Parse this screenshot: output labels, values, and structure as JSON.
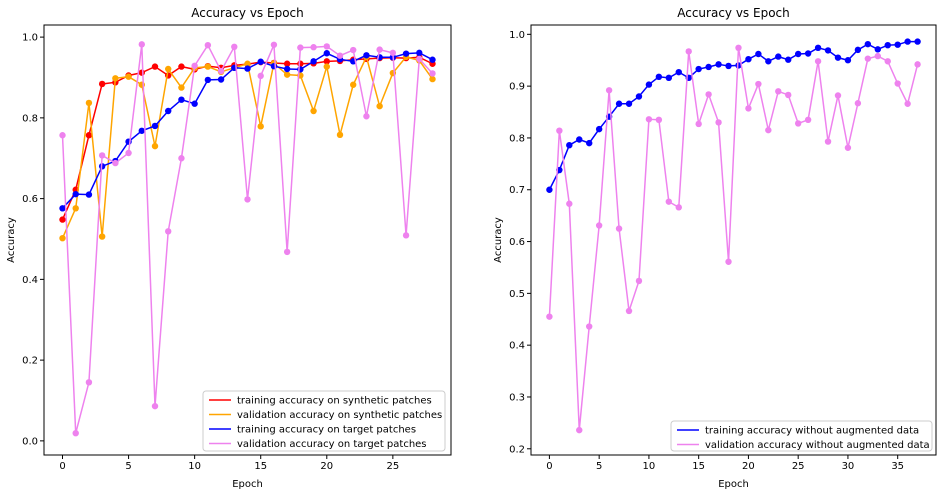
{
  "chart_data": [
    {
      "type": "line",
      "title": "Accuracy vs Epoch",
      "xlabel": "Epoch",
      "ylabel": "Accuracy",
      "xlim": [
        -1.4,
        29.4
      ],
      "ylim": [
        -0.035,
        1.03
      ],
      "xticks": [
        0,
        5,
        10,
        15,
        20,
        25
      ],
      "yticks": [
        0.0,
        0.2,
        0.4,
        0.6,
        0.8,
        1.0
      ],
      "xtick_labels": [
        "0",
        "5",
        "10",
        "15",
        "20",
        "25"
      ],
      "ytick_labels": [
        "0.0",
        "0.2",
        "0.4",
        "0.6",
        "0.8",
        "1.0"
      ],
      "grid": false,
      "legend_position": "lower-right",
      "x": [
        0,
        1,
        2,
        3,
        4,
        5,
        6,
        7,
        8,
        9,
        10,
        11,
        12,
        13,
        14,
        15,
        16,
        17,
        18,
        19,
        20,
        21,
        22,
        23,
        24,
        25,
        26,
        27,
        28
      ],
      "series": [
        {
          "name": "training accuracy on synthetic patches",
          "color": "#ff0000",
          "values": [
            0.548,
            0.622,
            0.757,
            0.884,
            0.888,
            0.905,
            0.912,
            0.927,
            0.905,
            0.927,
            0.92,
            0.928,
            0.924,
            0.93,
            0.933,
            0.938,
            0.936,
            0.934,
            0.934,
            0.935,
            0.94,
            0.941,
            0.944,
            0.946,
            0.948,
            0.949,
            0.948,
            0.95,
            0.934
          ]
        },
        {
          "name": "validation accuracy on synthetic patches",
          "color": "#ffa500",
          "values": [
            0.502,
            0.576,
            0.837,
            0.506,
            0.898,
            0.902,
            0.882,
            0.73,
            0.921,
            0.875,
            0.924,
            0.927,
            0.914,
            0.924,
            0.934,
            0.779,
            0.935,
            0.907,
            0.905,
            0.817,
            0.927,
            0.758,
            0.882,
            0.951,
            0.829,
            0.911,
            0.951,
            0.942,
            0.896
          ]
        },
        {
          "name": "training accuracy on target patches",
          "color": "#0000ff",
          "values": [
            0.576,
            0.611,
            0.61,
            0.68,
            0.693,
            0.741,
            0.768,
            0.78,
            0.817,
            0.845,
            0.835,
            0.894,
            0.895,
            0.924,
            0.922,
            0.939,
            0.928,
            0.921,
            0.92,
            0.94,
            0.96,
            0.945,
            0.94,
            0.955,
            0.95,
            0.95,
            0.959,
            0.961,
            0.944
          ]
        },
        {
          "name": "validation accuracy on target patches",
          "color": "#ee82ee",
          "values": [
            0.757,
            0.019,
            0.145,
            0.707,
            0.688,
            0.713,
            0.982,
            0.086,
            0.519,
            0.7,
            0.929,
            0.98,
            0.916,
            0.976,
            0.598,
            0.904,
            0.981,
            0.468,
            0.974,
            0.975,
            0.977,
            0.954,
            0.968,
            0.804,
            0.969,
            0.961,
            0.509,
            0.946,
            0.91
          ]
        }
      ]
    },
    {
      "type": "line",
      "title": "Accuracy vs Epoch",
      "xlabel": "Epoch",
      "ylabel": "Accuracy",
      "xlim": [
        -1.85,
        38.85
      ],
      "ylim": [
        0.188,
        1.018
      ],
      "xticks": [
        0,
        5,
        10,
        15,
        20,
        25,
        30,
        35
      ],
      "yticks": [
        0.2,
        0.3,
        0.4,
        0.5,
        0.6,
        0.7,
        0.8,
        0.9,
        1.0
      ],
      "xtick_labels": [
        "0",
        "5",
        "10",
        "15",
        "20",
        "25",
        "30",
        "35"
      ],
      "ytick_labels": [
        "0.2",
        "0.3",
        "0.4",
        "0.5",
        "0.6",
        "0.7",
        "0.8",
        "0.9",
        "1.0"
      ],
      "grid": false,
      "legend_position": "lower-right",
      "x": [
        0,
        1,
        2,
        3,
        4,
        5,
        6,
        7,
        8,
        9,
        10,
        11,
        12,
        13,
        14,
        15,
        16,
        17,
        18,
        19,
        20,
        21,
        22,
        23,
        24,
        25,
        26,
        27,
        28,
        29,
        30,
        31,
        32,
        33,
        34,
        35,
        36,
        37
      ],
      "series": [
        {
          "name": "training accuracy without augmented data",
          "color": "#0000ff",
          "values": [
            0.7,
            0.738,
            0.786,
            0.797,
            0.79,
            0.817,
            0.841,
            0.866,
            0.866,
            0.88,
            0.903,
            0.918,
            0.916,
            0.927,
            0.916,
            0.933,
            0.937,
            0.942,
            0.939,
            0.94,
            0.952,
            0.962,
            0.948,
            0.957,
            0.951,
            0.962,
            0.963,
            0.974,
            0.969,
            0.955,
            0.95,
            0.97,
            0.981,
            0.971,
            0.979,
            0.98,
            0.986,
            0.986
          ]
        },
        {
          "name": "validation accuracy without augmented data",
          "color": "#ee82ee",
          "values": [
            0.455,
            0.814,
            0.673,
            0.236,
            0.436,
            0.631,
            0.892,
            0.625,
            0.466,
            0.524,
            0.836,
            0.835,
            0.677,
            0.666,
            0.967,
            0.827,
            0.884,
            0.83,
            0.561,
            0.974,
            0.857,
            0.904,
            0.815,
            0.89,
            0.883,
            0.828,
            0.835,
            0.948,
            0.793,
            0.882,
            0.781,
            0.867,
            0.953,
            0.958,
            0.948,
            0.905,
            0.866,
            0.942
          ]
        }
      ]
    }
  ]
}
